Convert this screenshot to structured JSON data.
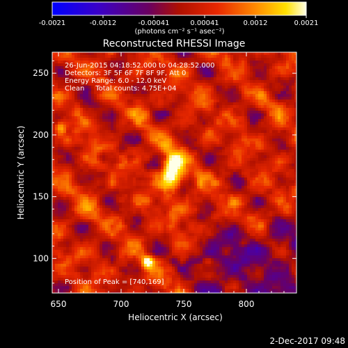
{
  "colorbar": {
    "tick_labels": [
      "-0.0021",
      "-0.0012",
      "-0.00041",
      "0.00041",
      "0.0012",
      "0.0021"
    ],
    "units_label": "(photons cm⁻² s⁻¹ asec⁻²)",
    "range": [
      -0.0021,
      0.0021
    ],
    "colors": [
      "#0000ff",
      "#5a00a0",
      "#a01010",
      "#e02000",
      "#ff7a00",
      "#ffd000",
      "#ffffe8"
    ]
  },
  "chart_data": {
    "type": "heatmap",
    "title": "Reconstructed RHESSI Image",
    "xlabel": "Heliocentric X (arcsec)",
    "ylabel": "Heliocentric Y (arcsec)",
    "xlim": [
      645,
      840
    ],
    "ylim": [
      72,
      267
    ],
    "xticks": [
      650,
      700,
      750,
      800
    ],
    "yticks": [
      100,
      150,
      200,
      250
    ],
    "info_lines": [
      "26-Jun-2015 04:18:52.000 to 04:28:52.000",
      "Detectors: 3F 5F 6F 7F 8F 9F, Att 0",
      "Energy Range: 6.0 - 12.0 keV",
      "Clean     Total counts: 4.75E+04"
    ],
    "peak_label": "Position of Peak = [740,169]",
    "peak": [
      740,
      169
    ],
    "sources": [
      {
        "x": 740,
        "y": 169,
        "peak": 0.0021
      },
      {
        "x": 721,
        "y": 97,
        "peak": 0.0016
      },
      {
        "x": 652,
        "y": 207,
        "peak": 0.0011
      }
    ]
  },
  "footer": {
    "timestamp": "2-Dec-2017 09:48"
  }
}
